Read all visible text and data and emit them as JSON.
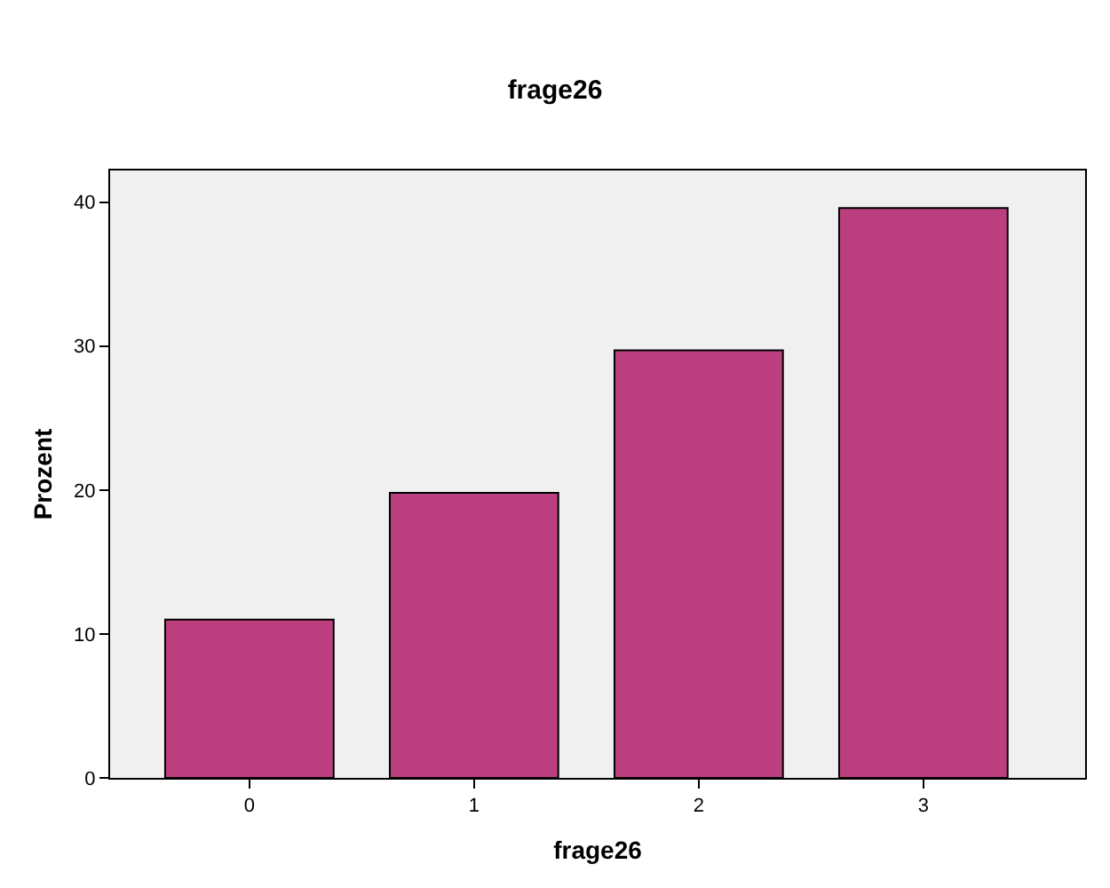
{
  "chart_data": {
    "type": "bar",
    "title": "frage26",
    "xlabel": "frage26",
    "ylabel": "Prozent",
    "categories": [
      "0",
      "1",
      "2",
      "3"
    ],
    "values": [
      11.0,
      19.8,
      29.7,
      39.6
    ],
    "color": "#bb3f7e",
    "ylim": [
      0,
      42.2
    ],
    "yticks": [
      0,
      10,
      20,
      30,
      40
    ],
    "grid": false,
    "legend": false
  }
}
